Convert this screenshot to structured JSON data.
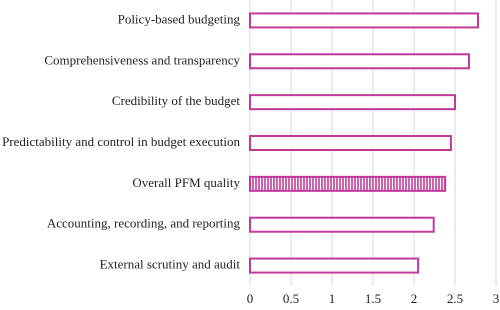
{
  "chart_data": {
    "type": "hbar",
    "categories": [
      "Policy-based budgeting",
      "Comprehensiveness and transparency",
      "Credibility of the budget",
      "Predictability and control in budget execution",
      "Overall PFM quality",
      "Accounting, recording, and reporting",
      "External scrutiny and audit"
    ],
    "values": [
      2.78,
      2.67,
      2.5,
      2.45,
      2.38,
      2.24,
      2.05
    ],
    "hatched": [
      false,
      false,
      false,
      false,
      true,
      false,
      false
    ],
    "color": "#c2399c",
    "xlim": [
      0,
      3
    ],
    "xticks": [
      0,
      0.5,
      1,
      1.5,
      2,
      2.5,
      3
    ],
    "grid": true
  }
}
